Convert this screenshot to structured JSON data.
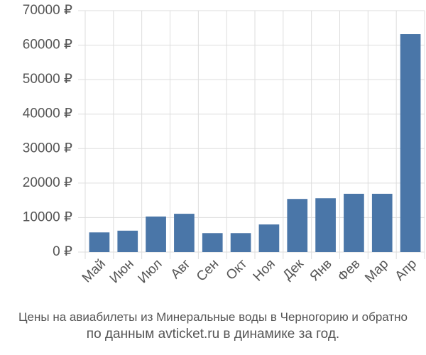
{
  "chart_data": {
    "type": "bar",
    "title": "Цены на авиабилеты из Минеральные воды в Черногорию и обратно",
    "subtitle": "по данным avticket.ru в динамике за год.",
    "categories": [
      "Май",
      "Июн",
      "Июл",
      "Авг",
      "Сен",
      "Окт",
      "Ноя",
      "Дек",
      "Янв",
      "Фев",
      "Мар",
      "Апр"
    ],
    "values": [
      5700,
      6200,
      10300,
      11100,
      5500,
      5500,
      8000,
      15400,
      15600,
      16900,
      16900,
      63200
    ],
    "color": "#4a76a8",
    "ylim": [
      0,
      70000
    ],
    "yticks": [
      {
        "value": 0,
        "label": "0 ₽"
      },
      {
        "value": 10000,
        "label": "10000 ₽"
      },
      {
        "value": 20000,
        "label": "20000 ₽"
      },
      {
        "value": 30000,
        "label": "30000 ₽"
      },
      {
        "value": 40000,
        "label": "40000 ₽"
      },
      {
        "value": 50000,
        "label": "50000 ₽"
      },
      {
        "value": 60000,
        "label": "60000 ₽"
      },
      {
        "value": 70000,
        "label": "70000 ₽"
      }
    ],
    "grid": true
  }
}
